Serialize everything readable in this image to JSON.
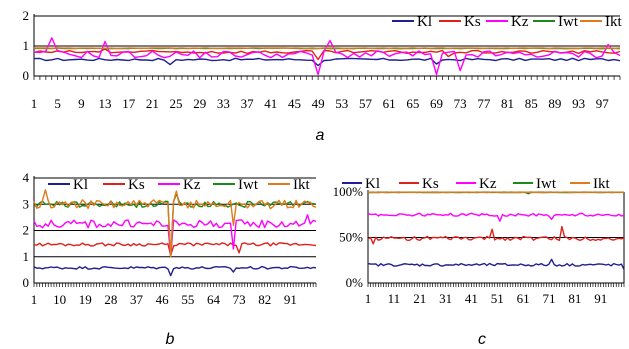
{
  "chart_data": [
    {
      "type": "line",
      "panel": "a",
      "ylim": [
        0,
        2
      ],
      "yticks": [
        "0",
        "1",
        "2"
      ],
      "xtick_labels": [
        "1",
        "5",
        "9",
        "13",
        "17",
        "21",
        "25",
        "29",
        "33",
        "37",
        "41",
        "45",
        "49",
        "53",
        "57",
        "61",
        "65",
        "69",
        "73",
        "77",
        "81",
        "85",
        "89",
        "93",
        "97"
      ],
      "grid": true,
      "legend_position": "top-right",
      "series": [
        {
          "name": "Kl",
          "color": "#1f1f8f",
          "baseline": 0.55,
          "noise": 0.04,
          "spikes": [
            [
              23,
              0.38
            ],
            [
              48,
              0.35
            ],
            [
              68,
              0.4
            ]
          ]
        },
        {
          "name": "Ks",
          "color": "#e0201c",
          "baseline": 0.8,
          "noise": 0.05,
          "spikes": [
            [
              12,
              0.9
            ],
            [
              48,
              0.55
            ],
            [
              70,
              0.65
            ]
          ]
        },
        {
          "name": "Kz",
          "color": "#ff00ff",
          "baseline": 0.72,
          "noise": 0.12,
          "spikes": [
            [
              3,
              1.27
            ],
            [
              12,
              1.15
            ],
            [
              48,
              0.05
            ],
            [
              50,
              1.18
            ],
            [
              68,
              0.05
            ],
            [
              72,
              0.18
            ],
            [
              97,
              1.05
            ]
          ]
        },
        {
          "name": "Iwt",
          "color": "#1a8a1a",
          "baseline": 0.92,
          "noise": 0.01,
          "spikes": []
        },
        {
          "name": "Ikt",
          "color": "#e07a1a",
          "baseline": 0.93,
          "noise": 0.01,
          "spikes": []
        }
      ]
    },
    {
      "type": "line",
      "panel": "b",
      "ylim": [
        0,
        4
      ],
      "yticks": [
        "0",
        "1",
        "2",
        "3",
        "4"
      ],
      "xtick_labels": [
        "1",
        "10",
        "19",
        "28",
        "37",
        "46",
        "55",
        "64",
        "73",
        "82",
        "91"
      ],
      "grid": true,
      "legend_position": "top",
      "series": [
        {
          "name": "Kl",
          "color": "#1f1f8f",
          "baseline": 0.58,
          "noise": 0.05,
          "spikes": [
            [
              48,
              0.28
            ],
            [
              70,
              0.42
            ]
          ]
        },
        {
          "name": "Ks",
          "color": "#e0201c",
          "baseline": 1.47,
          "noise": 0.06,
          "spikes": [
            [
              48,
              1.05
            ],
            [
              72,
              1.15
            ]
          ]
        },
        {
          "name": "Kz",
          "color": "#ff00ff",
          "baseline": 2.25,
          "noise": 0.15,
          "spikes": [
            [
              48,
              1.0
            ],
            [
              70,
              1.3
            ],
            [
              96,
              2.6
            ]
          ]
        },
        {
          "name": "Iwt",
          "color": "#1a8a1a",
          "baseline": 3.0,
          "noise": 0.12,
          "spikes": [
            [
              48,
              1.0
            ],
            [
              50,
              3.4
            ]
          ]
        },
        {
          "name": "Ikt",
          "color": "#e07a1a",
          "baseline": 3.0,
          "noise": 0.17,
          "spikes": [
            [
              4,
              3.55
            ],
            [
              48,
              1.0
            ],
            [
              50,
              3.5
            ],
            [
              70,
              2.2
            ]
          ]
        }
      ]
    },
    {
      "type": "line",
      "panel": "c",
      "ylim": [
        0,
        100
      ],
      "yticks": [
        "0%",
        "50%",
        "100%"
      ],
      "xtick_labels": [
        "1",
        "11",
        "21",
        "31",
        "41",
        "51",
        "61",
        "71",
        "81",
        "91"
      ],
      "grid": true,
      "legend_position": "top",
      "series": [
        {
          "name": "Kl",
          "color": "#1f1f8f",
          "baseline": 20,
          "noise": 1.5,
          "spikes": [
            [
              71,
              26
            ],
            [
              99,
              15
            ]
          ]
        },
        {
          "name": "Ks",
          "color": "#e0201c",
          "baseline": 49,
          "noise": 2.2,
          "spikes": [
            [
              2,
              43
            ],
            [
              48,
              59
            ],
            [
              75,
              62
            ]
          ]
        },
        {
          "name": "Kz",
          "color": "#ff00ff",
          "baseline": 75,
          "noise": 1.6,
          "spikes": [
            [
              51,
              68
            ],
            [
              71,
              70
            ]
          ]
        },
        {
          "name": "Iwt",
          "color": "#1a8a1a",
          "baseline": 99.5,
          "noise": 0.2,
          "spikes": [
            [
              62,
              98
            ]
          ]
        },
        {
          "name": "Ikt",
          "color": "#e07a1a",
          "baseline": 99.7,
          "noise": 0.2,
          "spikes": []
        }
      ]
    }
  ],
  "panel_labels": {
    "a": "a",
    "b": "b",
    "c": "c"
  }
}
